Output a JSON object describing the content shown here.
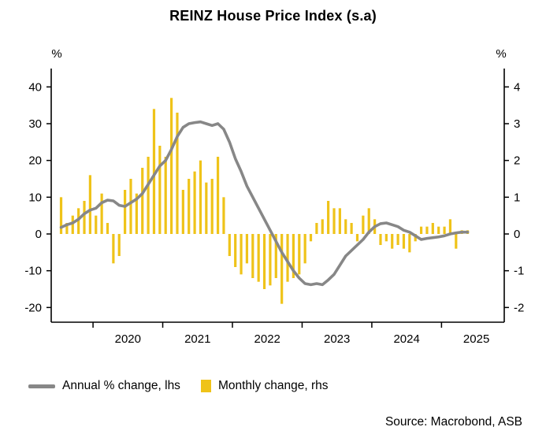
{
  "title": "REINZ House Price Index (s.a)",
  "source": "Source: Macrobond, ASB",
  "axes": {
    "left_unit": "%",
    "right_unit": "%"
  },
  "legend": {
    "items": [
      {
        "label": "Annual % change, lhs",
        "swatch": "line",
        "color": "#878787"
      },
      {
        "label": "Monthly change, rhs",
        "swatch": "bar",
        "color": "#efc319"
      }
    ]
  },
  "colors": {
    "line": "#878787",
    "bar": "#efc319",
    "axis": "#000000",
    "background": "#ffffff"
  },
  "chart_data": {
    "type": "line+bar",
    "title": "REINZ House Price Index (s.a)",
    "grid": false,
    "legend_position": "bottom-left",
    "x_start": "2019-07",
    "x_end": "2025-05",
    "months": [
      "2019-07",
      "2019-08",
      "2019-09",
      "2019-10",
      "2019-11",
      "2019-12",
      "2020-01",
      "2020-02",
      "2020-03",
      "2020-04",
      "2020-05",
      "2020-06",
      "2020-07",
      "2020-08",
      "2020-09",
      "2020-10",
      "2020-11",
      "2020-12",
      "2021-01",
      "2021-02",
      "2021-03",
      "2021-04",
      "2021-05",
      "2021-06",
      "2021-07",
      "2021-08",
      "2021-09",
      "2021-10",
      "2021-11",
      "2021-12",
      "2022-01",
      "2022-02",
      "2022-03",
      "2022-04",
      "2022-05",
      "2022-06",
      "2022-07",
      "2022-08",
      "2022-09",
      "2022-10",
      "2022-11",
      "2022-12",
      "2023-01",
      "2023-02",
      "2023-03",
      "2023-04",
      "2023-05",
      "2023-06",
      "2023-07",
      "2023-08",
      "2023-09",
      "2023-10",
      "2023-11",
      "2023-12",
      "2024-01",
      "2024-02",
      "2024-03",
      "2024-04",
      "2024-05",
      "2024-06",
      "2024-07",
      "2024-08",
      "2024-09",
      "2024-10",
      "2024-11",
      "2024-12",
      "2025-01",
      "2025-02",
      "2025-03",
      "2025-04",
      "2025-05"
    ],
    "series": [
      {
        "name": "Annual % change, lhs",
        "type": "line",
        "axis": "left",
        "color": "#878787",
        "values": [
          1.8,
          2.5,
          3.0,
          4.0,
          5.5,
          6.5,
          7.0,
          8.5,
          9.2,
          9.0,
          7.8,
          7.5,
          8.5,
          9.5,
          11.0,
          13.5,
          16.0,
          18.5,
          20.0,
          23.0,
          26.5,
          29.0,
          30.0,
          30.3,
          30.5,
          30.0,
          29.5,
          30.0,
          28.5,
          25.0,
          20.5,
          17.0,
          13.0,
          10.0,
          7.0,
          4.0,
          1.0,
          -2.0,
          -5.0,
          -7.5,
          -10.0,
          -12.0,
          -13.5,
          -13.8,
          -13.5,
          -13.8,
          -12.5,
          -11.0,
          -8.5,
          -6.0,
          -4.5,
          -3.0,
          -1.5,
          0.5,
          2.0,
          2.8,
          3.0,
          2.5,
          2.0,
          1.0,
          0.5,
          -0.5,
          -1.5,
          -1.2,
          -1.0,
          -0.8,
          -0.5,
          0.0,
          0.3,
          0.5,
          0.5
        ]
      },
      {
        "name": "Monthly change, rhs",
        "type": "bar",
        "axis": "right",
        "color": "#efc319",
        "values": [
          1.0,
          0.3,
          0.5,
          0.7,
          0.9,
          1.6,
          0.5,
          1.1,
          0.3,
          -0.8,
          -0.6,
          1.2,
          1.5,
          1.1,
          1.8,
          2.1,
          3.4,
          2.4,
          2.1,
          3.7,
          3.3,
          1.2,
          1.5,
          1.7,
          2.0,
          1.4,
          1.5,
          2.1,
          1.0,
          -0.6,
          -0.9,
          -1.1,
          -0.8,
          -1.2,
          -1.3,
          -1.5,
          -1.4,
          -1.2,
          -1.9,
          -1.3,
          -1.2,
          -1.1,
          -0.8,
          -0.2,
          0.3,
          0.4,
          0.9,
          0.7,
          0.7,
          0.4,
          0.3,
          -0.2,
          0.5,
          0.7,
          0.4,
          -0.3,
          -0.2,
          -0.4,
          -0.3,
          -0.4,
          -0.5,
          -0.2,
          0.2,
          0.2,
          0.3,
          0.2,
          0.2,
          0.4,
          -0.4,
          0.1,
          0.1
        ]
      }
    ],
    "left_axis": {
      "label": "%",
      "min": -24,
      "max": 45,
      "ticks": [
        -20,
        -10,
        0,
        10,
        20,
        30,
        40
      ]
    },
    "right_axis": {
      "label": "%",
      "min": -2.4,
      "max": 4.5,
      "ticks": [
        -2,
        -1,
        0,
        1,
        2,
        3,
        4
      ]
    },
    "x_axis": {
      "domain": [
        2019.4,
        2025.9
      ],
      "tick_years": [
        2020,
        2021,
        2022,
        2023,
        2024,
        2025
      ],
      "labels": [
        "2020",
        "2021",
        "2022",
        "2023",
        "2024",
        "2025"
      ]
    }
  }
}
